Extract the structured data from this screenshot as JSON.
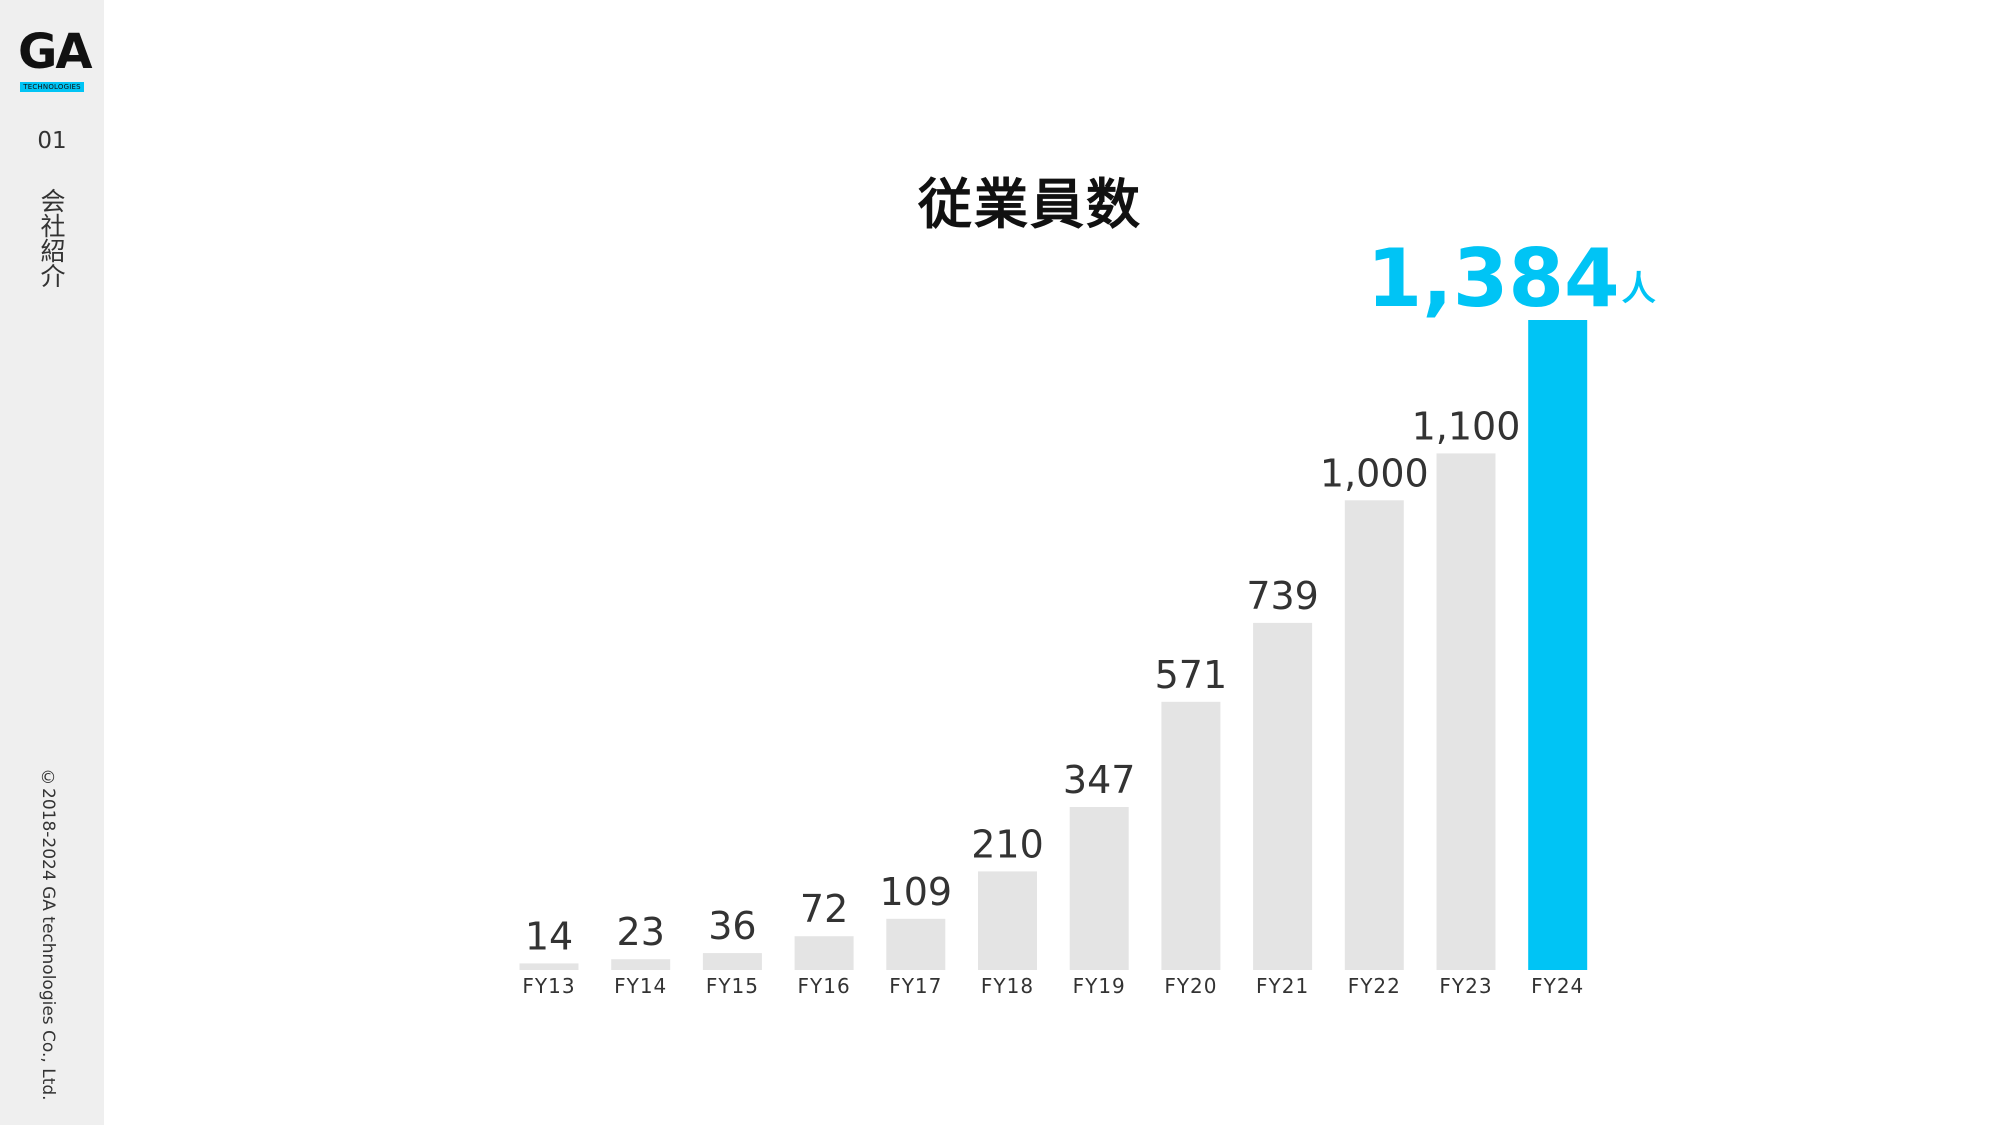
{
  "sidebar": {
    "logo_text": "GA",
    "logo_sub": "TECHNOLOGIES",
    "section_number": "01",
    "section_name": "会社紹介",
    "copyright": "©2018-2024 GA technologies Co., Ltd."
  },
  "colors": {
    "bar": "#e4e4e4",
    "highlight": "#00c4f5",
    "sidebar_bg": "#efefef"
  },
  "chart_data": {
    "type": "bar",
    "title": "従業員数",
    "categories": [
      "FY13",
      "FY14",
      "FY15",
      "FY16",
      "FY17",
      "FY18",
      "FY19",
      "FY20",
      "FY21",
      "FY22",
      "FY23",
      "FY24"
    ],
    "values": [
      14,
      23,
      36,
      72,
      109,
      210,
      347,
      571,
      739,
      1000,
      1100,
      1384
    ],
    "value_labels": [
      "14",
      "23",
      "36",
      "72",
      "109",
      "210",
      "347",
      "571",
      "739",
      "1,000",
      "1,100",
      "1,384"
    ],
    "highlight_index": 11,
    "highlight_unit": "人",
    "ylim": [
      0,
      1384
    ],
    "grid": false,
    "legend": "none"
  }
}
